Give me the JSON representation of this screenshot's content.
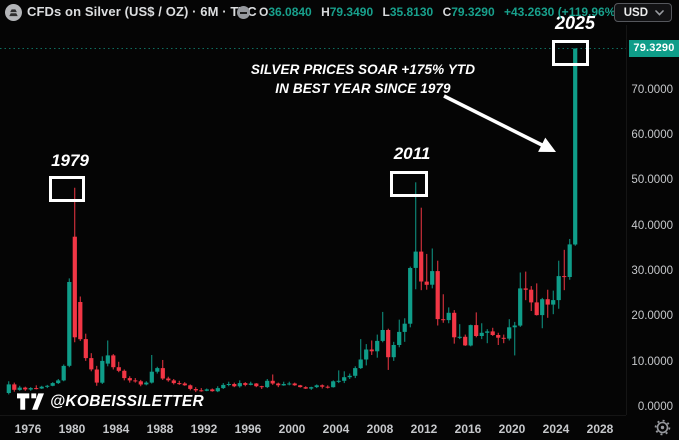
{
  "header": {
    "symbol_title": "CFDs on Silver (US$ / OZ) · 6M · TVC",
    "ohlc": {
      "o_label": "O",
      "o": "36.0840",
      "h_label": "H",
      "h": "79.3490",
      "l_label": "L",
      "l": "35.8130",
      "c_label": "C",
      "c": "79.3290",
      "change": "+43.2630 (+119.96%)"
    },
    "currency_button": "USD"
  },
  "annotations": {
    "label_1979": "1979",
    "label_2011": "2011",
    "label_2025": "2025",
    "callout_line1": "SILVER PRICES SOAR +175% YTD",
    "callout_line2": "IN BEST YEAR SINCE 1979",
    "watermark": "@KOBEISSILETTER"
  },
  "price_axis": {
    "last_price": "79.3290",
    "ticks": [
      "70.0000",
      "60.0000",
      "50.0000",
      "40.0000",
      "30.0000",
      "20.0000",
      "10.0000",
      "0.0000"
    ]
  },
  "time_axis": {
    "ticks": [
      "1976",
      "1980",
      "1984",
      "1988",
      "1992",
      "1996",
      "2000",
      "2004",
      "2008",
      "2012",
      "2016",
      "2020",
      "2024",
      "2028"
    ]
  },
  "icons": {
    "instrument": "silver-ingot-icon",
    "hide": "minus-circle-icon",
    "currency_chevron": "chevron-down-icon",
    "settings": "gear-icon",
    "logo": "tradingview-logo"
  },
  "colors": {
    "up": "#0f9d89",
    "down": "#f23645",
    "badge_bg": "#0f9d89",
    "last_price_line": "#0e6e60",
    "axis_text": "#c6c8cb",
    "header_text": "#dcdee0",
    "value_text": "#18a08c",
    "annotation": "#ffffff"
  },
  "chart_data": {
    "type": "candlestick",
    "title": "CFDs on Silver (US$ / OZ)",
    "timeframe": "6M",
    "exchange": "TVC",
    "x_start_year": 1974.0,
    "x_step_years": 0.5,
    "xlim": [
      1974,
      2028.5
    ],
    "ylim": [
      0,
      80
    ],
    "legend_position": "none",
    "grid": false,
    "last_close": 79.329,
    "candles_ohlc": [
      [
        3.3,
        5.9,
        3.0,
        5.2
      ],
      [
        5.2,
        5.6,
        3.6,
        4.0
      ],
      [
        4.0,
        4.9,
        3.8,
        4.5
      ],
      [
        4.5,
        4.7,
        3.8,
        4.1
      ],
      [
        4.1,
        4.6,
        3.8,
        4.4
      ],
      [
        4.4,
        5.0,
        4.1,
        4.3
      ],
      [
        4.3,
        4.9,
        4.2,
        4.7
      ],
      [
        4.7,
        5.1,
        4.4,
        4.9
      ],
      [
        4.9,
        5.7,
        4.8,
        5.5
      ],
      [
        5.5,
        6.4,
        5.3,
        6.1
      ],
      [
        6.1,
        9.6,
        5.9,
        9.3
      ],
      [
        9.3,
        28.6,
        9.0,
        27.8
      ],
      [
        37.8,
        48.6,
        14.5,
        15.6
      ],
      [
        23.4,
        24.6,
        14.8,
        15.2
      ],
      [
        15.2,
        16.4,
        10.4,
        11.0
      ],
      [
        11.0,
        12.1,
        8.1,
        8.5
      ],
      [
        8.5,
        9.3,
        4.9,
        5.6
      ],
      [
        5.6,
        11.4,
        5.3,
        10.4
      ],
      [
        9.8,
        14.9,
        9.2,
        11.6
      ],
      [
        11.6,
        11.9,
        8.5,
        9.0
      ],
      [
        9.0,
        10.2,
        7.9,
        8.2
      ],
      [
        8.2,
        8.5,
        6.1,
        6.6
      ],
      [
        6.6,
        7.0,
        5.6,
        6.1
      ],
      [
        6.1,
        6.6,
        5.6,
        5.9
      ],
      [
        5.9,
        6.2,
        4.8,
        5.2
      ],
      [
        5.2,
        5.9,
        5.0,
        5.6
      ],
      [
        5.6,
        11.7,
        5.4,
        8.0
      ],
      [
        8.0,
        9.1,
        7.6,
        8.8
      ],
      [
        8.8,
        10.6,
        6.2,
        6.5
      ],
      [
        6.5,
        6.9,
        5.8,
        6.1
      ],
      [
        6.1,
        6.4,
        5.2,
        5.5
      ],
      [
        5.5,
        6.0,
        5.1,
        5.4
      ],
      [
        5.4,
        5.7,
        4.9,
        5.0
      ],
      [
        5.0,
        5.2,
        3.9,
        4.2
      ],
      [
        4.2,
        4.6,
        3.5,
        3.9
      ],
      [
        3.9,
        4.4,
        3.6,
        3.8
      ],
      [
        3.8,
        4.3,
        3.7,
        4.1
      ],
      [
        4.1,
        4.3,
        3.6,
        3.7
      ],
      [
        3.7,
        4.8,
        3.5,
        4.4
      ],
      [
        4.4,
        5.5,
        4.2,
        5.1
      ],
      [
        5.1,
        5.8,
        4.8,
        5.3
      ],
      [
        5.3,
        5.6,
        4.6,
        4.8
      ],
      [
        4.8,
        6.1,
        4.5,
        5.5
      ],
      [
        5.5,
        5.7,
        4.8,
        5.1
      ],
      [
        5.1,
        5.8,
        5.0,
        5.4
      ],
      [
        5.4,
        5.5,
        4.6,
        4.8
      ],
      [
        4.8,
        4.9,
        4.2,
        4.6
      ],
      [
        4.6,
        6.4,
        4.4,
        6.0
      ],
      [
        6.0,
        7.4,
        5.1,
        5.4
      ],
      [
        5.4,
        5.6,
        4.6,
        5.0
      ],
      [
        5.0,
        5.8,
        4.9,
        5.3
      ],
      [
        5.3,
        5.8,
        5.0,
        5.4
      ],
      [
        5.4,
        5.6,
        4.9,
        5.0
      ],
      [
        5.0,
        5.1,
        4.5,
        4.6
      ],
      [
        4.6,
        4.8,
        4.2,
        4.3
      ],
      [
        4.3,
        4.7,
        4.0,
        4.6
      ],
      [
        4.6,
        5.2,
        4.4,
        5.0
      ],
      [
        5.0,
        5.2,
        4.3,
        4.7
      ],
      [
        4.7,
        5.0,
        4.3,
        4.6
      ],
      [
        4.6,
        6.1,
        4.5,
        5.9
      ],
      [
        5.9,
        8.3,
        5.5,
        6.0
      ],
      [
        6.0,
        8.1,
        5.5,
        6.8
      ],
      [
        6.8,
        7.6,
        6.4,
        7.1
      ],
      [
        7.1,
        9.2,
        6.6,
        8.8
      ],
      [
        8.8,
        15.2,
        8.6,
        10.7
      ],
      [
        10.7,
        14.1,
        9.4,
        12.9
      ],
      [
        12.9,
        14.9,
        11.7,
        12.5
      ],
      [
        12.5,
        16.2,
        11.1,
        14.8
      ],
      [
        14.8,
        21.2,
        14.5,
        17.2
      ],
      [
        17.2,
        17.5,
        8.4,
        11.2
      ],
      [
        11.2,
        14.6,
        10.4,
        13.9
      ],
      [
        13.9,
        19.5,
        13.4,
        16.8
      ],
      [
        16.8,
        19.8,
        14.6,
        18.6
      ],
      [
        18.6,
        31.2,
        17.8,
        30.9
      ],
      [
        30.9,
        49.8,
        26.2,
        34.5
      ],
      [
        34.5,
        44.2,
        26.0,
        27.9
      ],
      [
        27.9,
        34.0,
        26.1,
        27.2
      ],
      [
        27.2,
        35.2,
        26.4,
        30.2
      ],
      [
        30.2,
        32.5,
        18.2,
        19.6
      ],
      [
        19.6,
        25.1,
        18.8,
        19.4
      ],
      [
        19.4,
        22.2,
        18.7,
        21.0
      ],
      [
        21.0,
        21.6,
        14.2,
        15.6
      ],
      [
        15.6,
        18.5,
        15.2,
        15.7
      ],
      [
        15.7,
        16.2,
        13.7,
        13.8
      ],
      [
        13.8,
        18.4,
        13.6,
        18.3
      ],
      [
        18.3,
        21.1,
        15.6,
        15.9
      ],
      [
        15.9,
        18.7,
        15.2,
        16.6
      ],
      [
        16.6,
        17.4,
        14.3,
        16.9
      ],
      [
        16.9,
        17.7,
        15.9,
        16.1
      ],
      [
        16.1,
        16.6,
        13.9,
        15.5
      ],
      [
        15.5,
        16.2,
        14.3,
        15.3
      ],
      [
        15.3,
        19.6,
        14.9,
        17.8
      ],
      [
        17.8,
        19.0,
        11.6,
        18.2
      ],
      [
        18.2,
        29.9,
        17.9,
        26.4
      ],
      [
        26.4,
        30.1,
        23.8,
        26.1
      ],
      [
        26.1,
        26.9,
        21.4,
        23.3
      ],
      [
        23.3,
        27.5,
        20.4,
        20.5
      ],
      [
        20.5,
        24.3,
        17.6,
        24.0
      ],
      [
        24.0,
        26.1,
        19.9,
        22.8
      ],
      [
        22.8,
        25.9,
        20.7,
        23.8
      ],
      [
        23.8,
        32.5,
        21.9,
        29.1
      ],
      [
        29.1,
        34.9,
        26.0,
        28.9
      ],
      [
        28.9,
        37.3,
        28.3,
        36.1
      ],
      [
        36.084,
        79.349,
        35.813,
        79.329
      ]
    ]
  }
}
